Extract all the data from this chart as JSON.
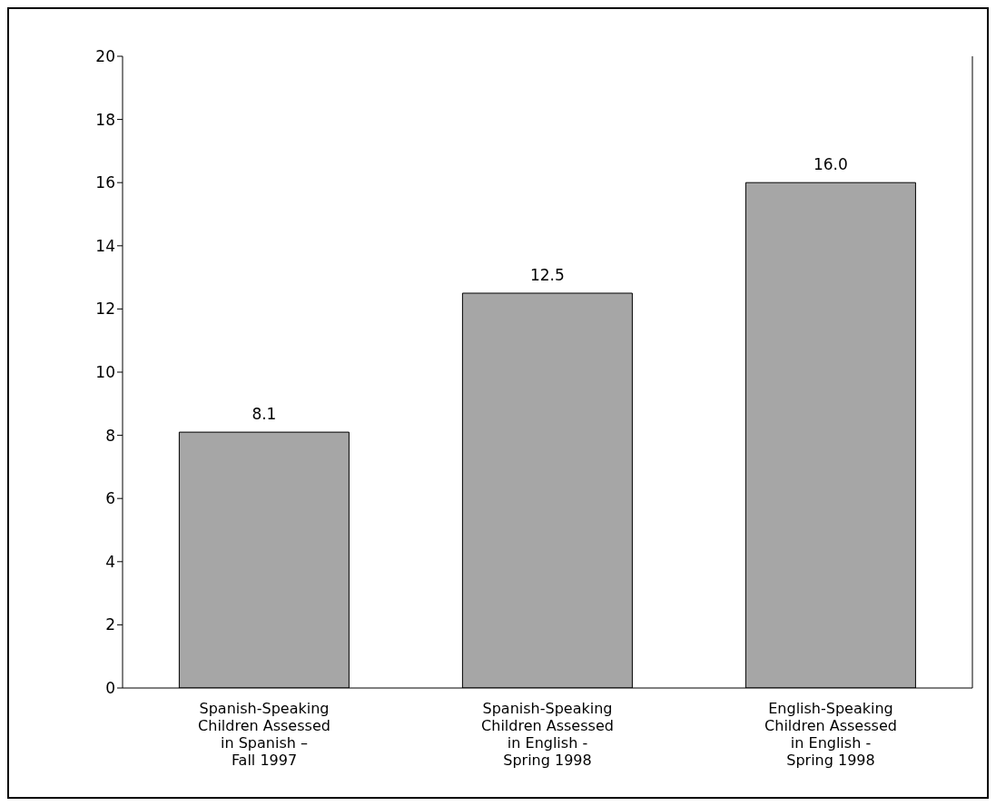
{
  "chart_data": {
    "type": "bar",
    "categories": [
      "Spanish-Speaking\nChildren Assessed\nin Spanish –\nFall 1997",
      "Spanish-Speaking\nChildren Assessed\nin English -\nSpring 1998",
      "English-Speaking\nChildren Assessed\nin English -\nSpring 1998"
    ],
    "values": [
      8.1,
      12.5,
      16.0
    ],
    "value_labels": [
      "8.1",
      "12.5",
      "16.0"
    ],
    "color": "#a6a6a6",
    "ylim": [
      0,
      20
    ],
    "yticks": [
      0,
      2,
      4,
      6,
      8,
      10,
      12,
      14,
      16,
      18,
      20
    ],
    "grid": false
  }
}
